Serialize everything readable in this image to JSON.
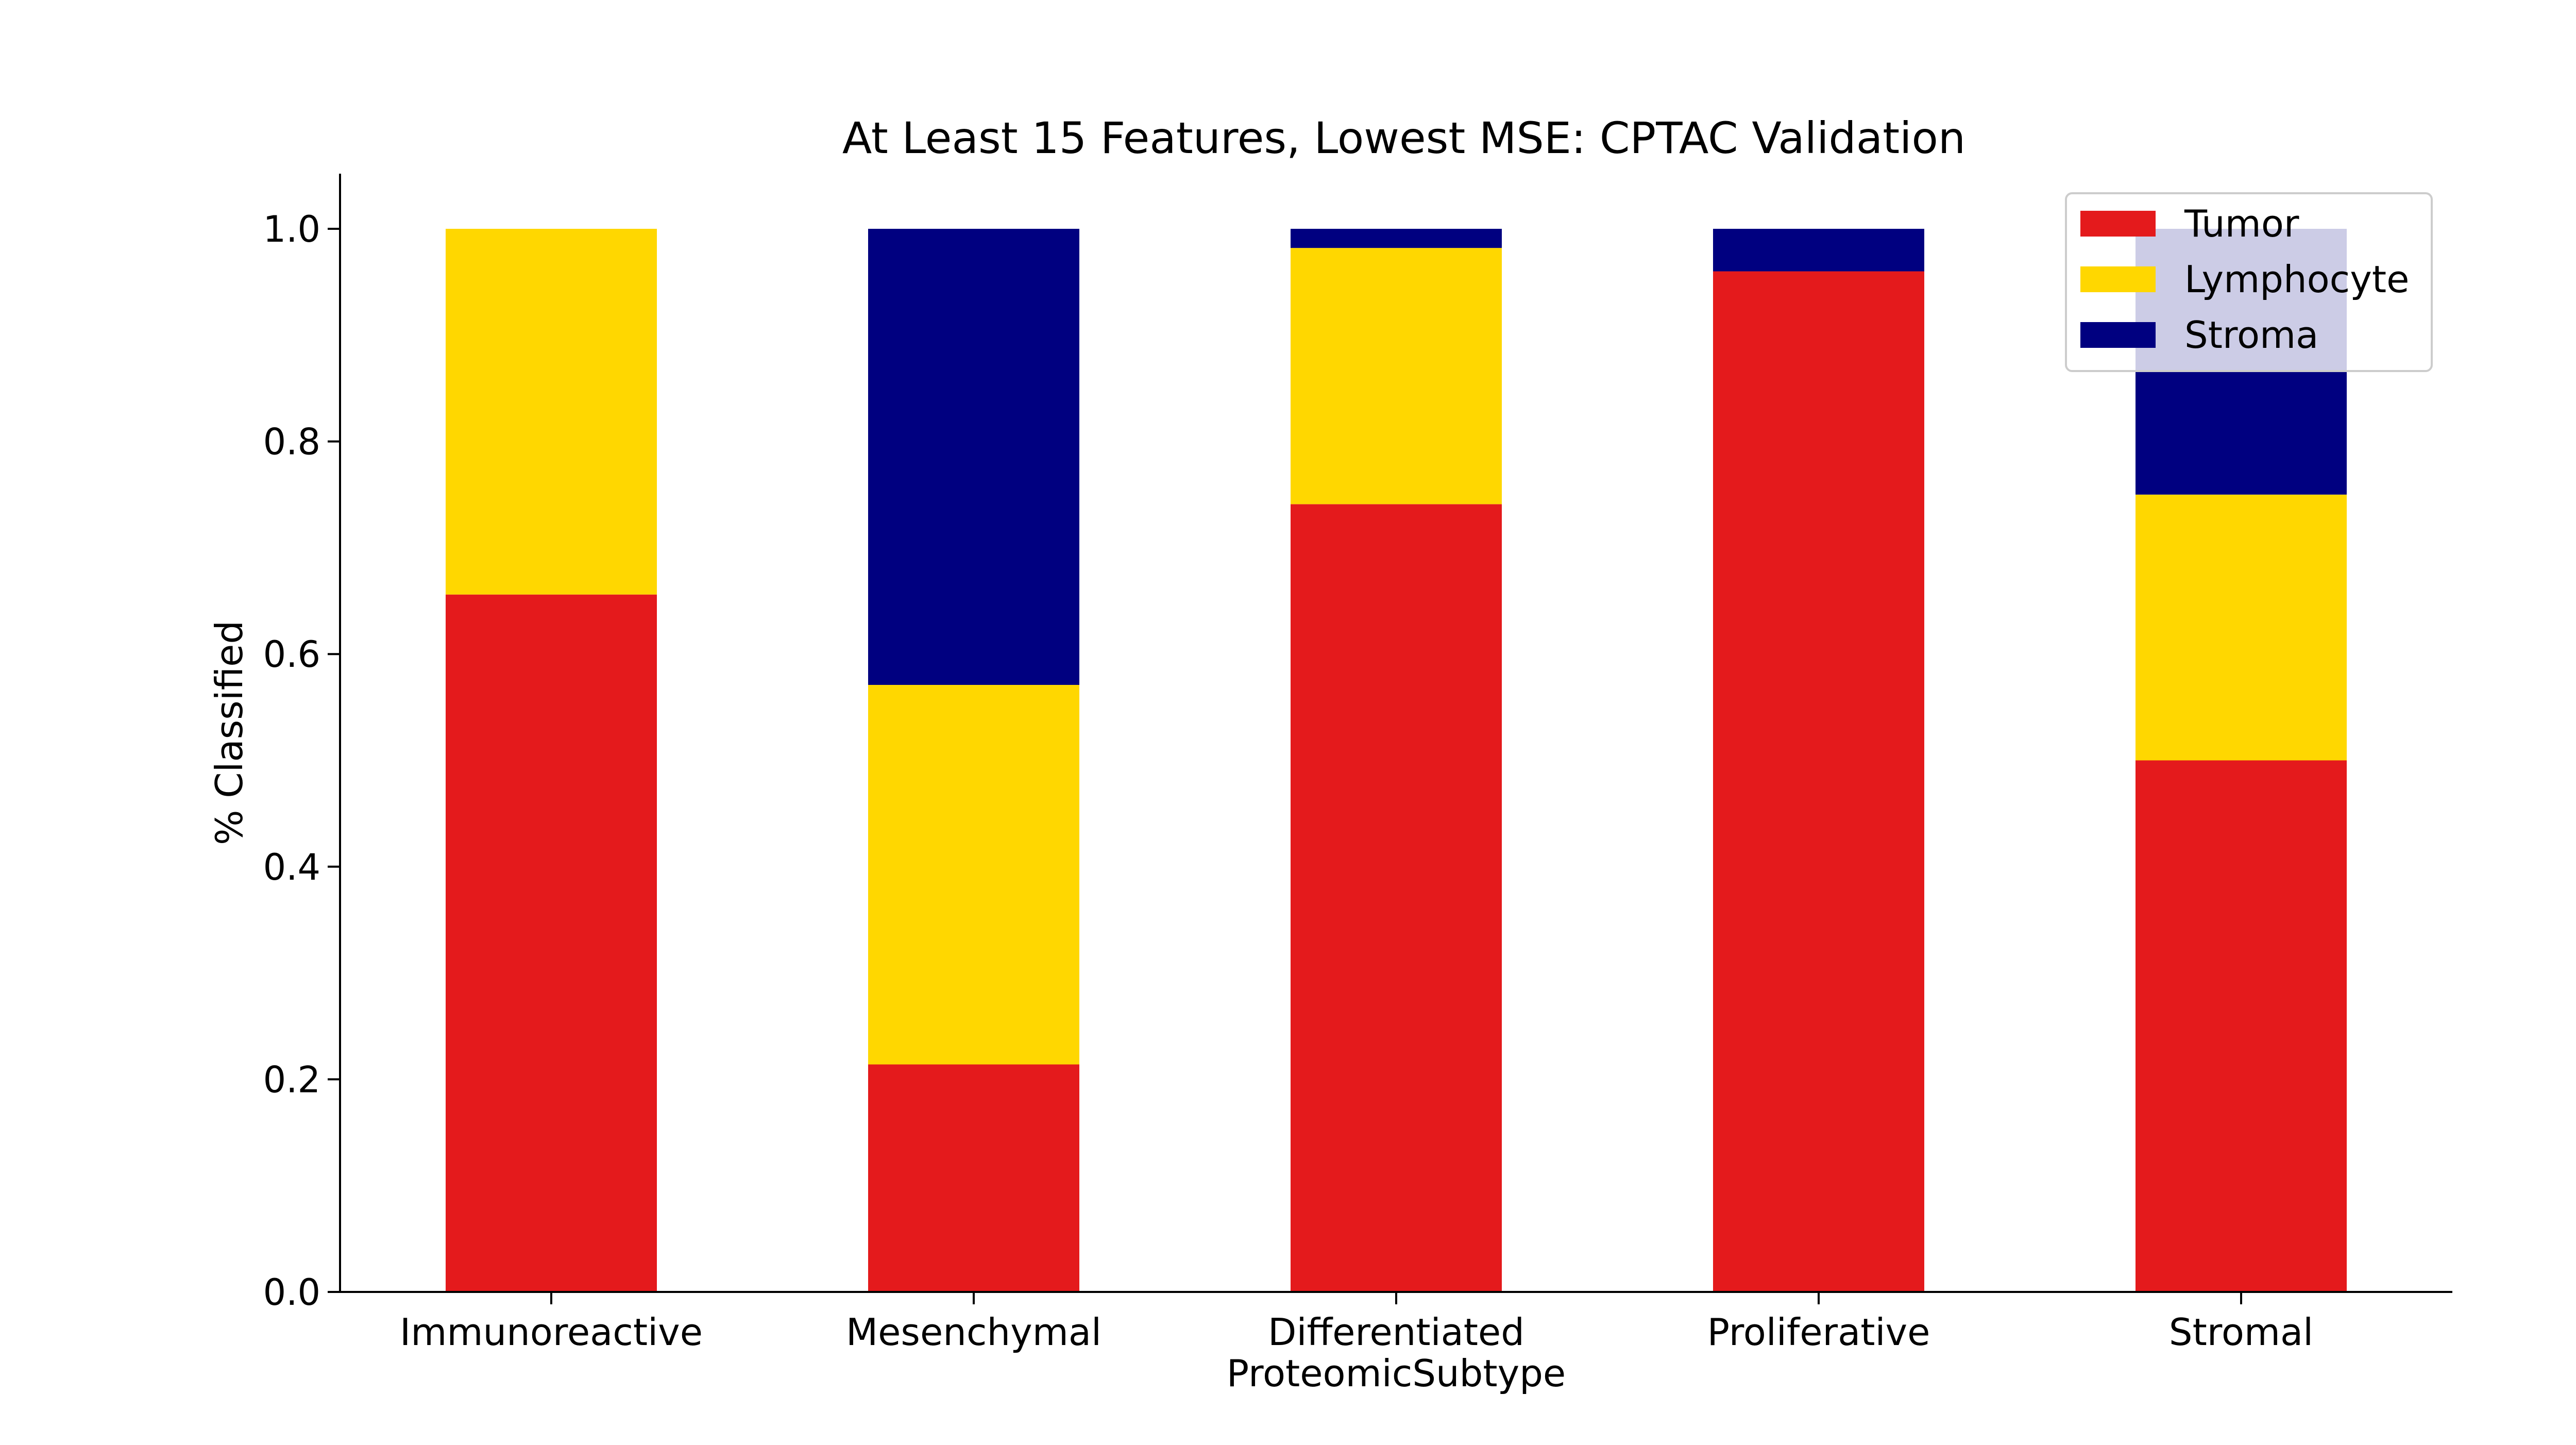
{
  "chart_data": {
    "type": "bar",
    "stacked": true,
    "title": "At Least 15 Features, Lowest MSE: CPTAC Validation",
    "xlabel": "ProteomicSubtype",
    "ylabel": "% Classified",
    "ylim": [
      0,
      1.05
    ],
    "yticks": [
      "0.0",
      "0.2",
      "0.4",
      "0.6",
      "0.8",
      "1.0"
    ],
    "categories": [
      "Immunoreactive",
      "Mesenchymal",
      "Differentiated",
      "Proliferative",
      "Stromal"
    ],
    "series": [
      {
        "name": "Tumor",
        "color": "#e41a1c",
        "values": [
          0.656,
          0.214,
          0.741,
          0.96,
          0.5
        ]
      },
      {
        "name": "Lymphocyte",
        "color": "#ffd700",
        "values": [
          0.344,
          0.357,
          0.241,
          0.0,
          0.25
        ]
      },
      {
        "name": "Stroma",
        "color": "#000080",
        "values": [
          0.0,
          0.429,
          0.018,
          0.04,
          0.25
        ]
      }
    ],
    "grid": false,
    "legend_position": "top-right"
  }
}
